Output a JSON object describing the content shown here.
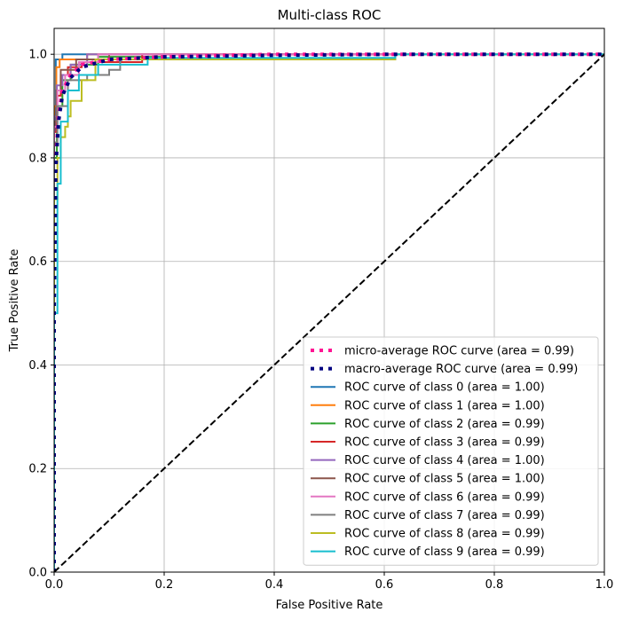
{
  "chart_data": {
    "type": "line",
    "title": "Multi-class ROC",
    "xlabel": "False Positive Rate",
    "ylabel": "True Positive Rate",
    "xlim": [
      0.0,
      1.0
    ],
    "ylim": [
      0.0,
      1.05
    ],
    "x_ticks": [
      "0.0",
      "0.2",
      "0.4",
      "0.6",
      "0.8",
      "1.0"
    ],
    "y_ticks": [
      "0.0",
      "0.2",
      "0.4",
      "0.6",
      "0.8",
      "1.0"
    ],
    "grid": true,
    "legend_position": "lower right",
    "series": [
      {
        "name": "micro-average ROC curve (area = 0.99)",
        "color": "#ff1493",
        "style": "dotted",
        "x": [
          0,
          0,
          0.003,
          0.008,
          0.015,
          0.03,
          0.05,
          0.1,
          0.2,
          0.4,
          1.0
        ],
        "y": [
          0,
          0.55,
          0.8,
          0.88,
          0.93,
          0.96,
          0.98,
          0.99,
          0.995,
          1.0,
          1.0
        ]
      },
      {
        "name": "macro-average ROC curve (area = 0.99)",
        "color": "#000080",
        "style": "dotted",
        "x": [
          0,
          0,
          0.003,
          0.008,
          0.015,
          0.03,
          0.05,
          0.1,
          0.2,
          0.4,
          0.62,
          1.0
        ],
        "y": [
          0,
          0.5,
          0.78,
          0.87,
          0.92,
          0.955,
          0.975,
          0.99,
          0.995,
          0.998,
          1.0,
          1.0
        ]
      },
      {
        "name": "ROC curve of class 0 (area = 1.00)",
        "color": "#1f77b4",
        "style": "solid",
        "x": [
          0,
          0,
          0.003,
          0.003,
          0.015,
          0.015,
          1.0
        ],
        "y": [
          0,
          0.85,
          0.85,
          0.99,
          0.99,
          1.0,
          1.0
        ]
      },
      {
        "name": "ROC curve of class 1 (area = 1.00)",
        "color": "#ff7f0e",
        "style": "solid",
        "x": [
          0,
          0,
          0.004,
          0.004,
          0.01,
          0.01,
          0.06,
          0.06,
          1.0
        ],
        "y": [
          0,
          0.9,
          0.9,
          0.975,
          0.975,
          0.99,
          0.99,
          1.0,
          1.0
        ]
      },
      {
        "name": "ROC curve of class 2 (area = 0.99)",
        "color": "#2ca02c",
        "style": "solid",
        "x": [
          0,
          0,
          0.005,
          0.005,
          0.015,
          0.015,
          0.03,
          0.03,
          0.08,
          0.08,
          0.2,
          0.2,
          1.0
        ],
        "y": [
          0,
          0.8,
          0.8,
          0.9,
          0.9,
          0.95,
          0.95,
          0.98,
          0.98,
          0.995,
          0.995,
          1.0,
          1.0
        ]
      },
      {
        "name": "ROC curve of class 3 (area = 0.99)",
        "color": "#d62728",
        "style": "solid",
        "x": [
          0,
          0,
          0.004,
          0.004,
          0.012,
          0.012,
          0.025,
          0.025,
          0.05,
          0.05,
          0.16,
          0.16,
          1.0
        ],
        "y": [
          0,
          0.85,
          0.85,
          0.92,
          0.92,
          0.96,
          0.96,
          0.975,
          0.975,
          0.985,
          0.985,
          1.0,
          1.0
        ]
      },
      {
        "name": "ROC curve of class 4 (area = 1.00)",
        "color": "#9467bd",
        "style": "solid",
        "x": [
          0,
          0,
          0.005,
          0.005,
          0.015,
          0.015,
          0.03,
          0.03,
          0.06,
          0.06,
          1.0
        ],
        "y": [
          0,
          0.88,
          0.88,
          0.94,
          0.94,
          0.96,
          0.96,
          0.98,
          0.98,
          1.0,
          1.0
        ]
      },
      {
        "name": "ROC curve of class 5 (area = 1.00)",
        "color": "#8c564b",
        "style": "solid",
        "x": [
          0,
          0,
          0.004,
          0.004,
          0.012,
          0.012,
          0.04,
          0.04,
          0.1,
          0.1,
          1.0
        ],
        "y": [
          0,
          0.87,
          0.87,
          0.93,
          0.93,
          0.97,
          0.97,
          0.99,
          0.99,
          1.0,
          1.0
        ]
      },
      {
        "name": "ROC curve of class 6 (area = 0.99)",
        "color": "#e377c2",
        "style": "solid",
        "x": [
          0,
          0,
          0.006,
          0.006,
          0.02,
          0.02,
          0.045,
          0.045,
          0.08,
          0.08,
          1.0
        ],
        "y": [
          0,
          0.86,
          0.86,
          0.93,
          0.93,
          0.96,
          0.96,
          0.985,
          0.985,
          1.0,
          1.0
        ]
      },
      {
        "name": "ROC curve of class 7 (area = 0.99)",
        "color": "#7f7f7f",
        "style": "solid",
        "x": [
          0,
          0,
          0.006,
          0.006,
          0.025,
          0.025,
          0.06,
          0.06,
          0.1,
          0.1,
          0.12,
          0.12,
          0.62,
          0.62,
          1.0
        ],
        "y": [
          0,
          0.83,
          0.83,
          0.9,
          0.9,
          0.95,
          0.95,
          0.96,
          0.96,
          0.97,
          0.97,
          0.99,
          0.99,
          1.0,
          1.0
        ]
      },
      {
        "name": "ROC curve of class 8 (area = 0.99)",
        "color": "#bcbd22",
        "style": "solid",
        "x": [
          0,
          0,
          0.006,
          0.006,
          0.012,
          0.012,
          0.02,
          0.02,
          0.025,
          0.025,
          0.03,
          0.03,
          0.05,
          0.05,
          0.075,
          0.075,
          0.62,
          0.62,
          1.0
        ],
        "y": [
          0,
          0.72,
          0.72,
          0.8,
          0.8,
          0.84,
          0.84,
          0.86,
          0.86,
          0.88,
          0.88,
          0.91,
          0.91,
          0.95,
          0.95,
          0.99,
          0.99,
          1.0,
          1.0
        ]
      },
      {
        "name": "ROC curve of class 9 (area = 0.99)",
        "color": "#17becf",
        "style": "solid",
        "x": [
          0,
          0,
          0.006,
          0.006,
          0.012,
          0.012,
          0.025,
          0.025,
          0.045,
          0.045,
          0.08,
          0.08,
          0.17,
          0.17,
          0.62,
          0.62,
          1.0
        ],
        "y": [
          0,
          0.5,
          0.5,
          0.75,
          0.75,
          0.87,
          0.87,
          0.93,
          0.93,
          0.96,
          0.96,
          0.98,
          0.98,
          0.993,
          0.993,
          1.0,
          1.0
        ]
      },
      {
        "name": "",
        "color": "#000000",
        "style": "dashed",
        "x": [
          0,
          1
        ],
        "y": [
          0,
          1
        ]
      }
    ]
  }
}
